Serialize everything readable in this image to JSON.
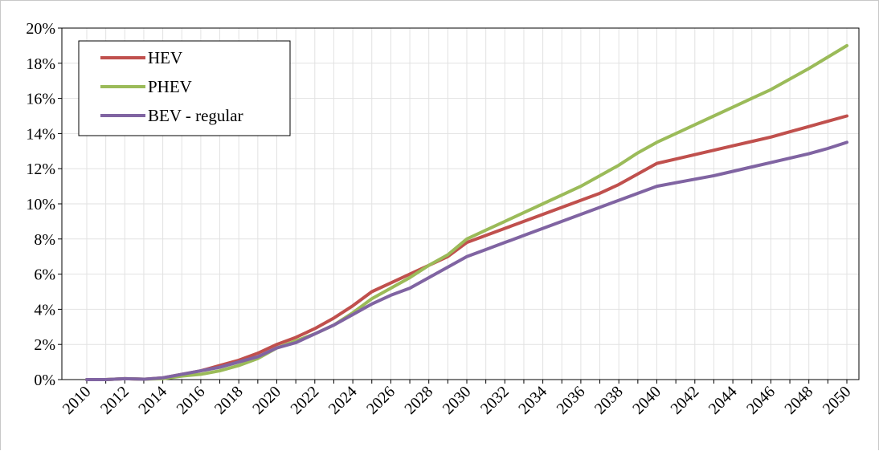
{
  "chart_data": {
    "type": "line",
    "title": "",
    "xlabel": "",
    "ylabel": "",
    "xlim": [
      2010,
      2050
    ],
    "ylim": [
      0,
      20
    ],
    "y_tick_format": "percent",
    "y_ticks": [
      "0%",
      "2%",
      "4%",
      "6%",
      "8%",
      "10%",
      "12%",
      "14%",
      "16%",
      "18%",
      "20%"
    ],
    "x_ticks": [
      "2010",
      "2012",
      "2014",
      "2016",
      "2018",
      "2020",
      "2022",
      "2024",
      "2026",
      "2028",
      "2030",
      "2032",
      "2034",
      "2036",
      "2038",
      "2040",
      "2042",
      "2044",
      "2046",
      "2048",
      "2050"
    ],
    "grid": true,
    "legend_position": "top-left",
    "x": [
      2010,
      2011,
      2012,
      2013,
      2014,
      2015,
      2016,
      2017,
      2018,
      2019,
      2020,
      2021,
      2022,
      2023,
      2024,
      2025,
      2026,
      2027,
      2028,
      2029,
      2030,
      2031,
      2032,
      2033,
      2034,
      2035,
      2036,
      2037,
      2038,
      2039,
      2040,
      2041,
      2042,
      2043,
      2044,
      2045,
      2046,
      2047,
      2048,
      2049,
      2050
    ],
    "series": [
      {
        "name": "HEV",
        "color": "#c0504d",
        "values": [
          0,
          0,
          0.05,
          0.02,
          0.1,
          0.3,
          0.5,
          0.8,
          1.1,
          1.5,
          2.0,
          2.4,
          2.9,
          3.5,
          4.2,
          5.0,
          5.5,
          6.0,
          6.5,
          7.0,
          7.8,
          8.2,
          8.6,
          9.0,
          9.4,
          9.8,
          10.2,
          10.6,
          11.1,
          11.7,
          12.3,
          12.55,
          12.8,
          13.05,
          13.3,
          13.55,
          13.8,
          14.1,
          14.4,
          14.7,
          15.0
        ]
      },
      {
        "name": "PHEV",
        "color": "#9bbb59",
        "values": [
          0,
          0,
          0.05,
          0.02,
          0.05,
          0.2,
          0.3,
          0.5,
          0.8,
          1.2,
          1.8,
          2.2,
          2.6,
          3.1,
          3.8,
          4.6,
          5.2,
          5.8,
          6.5,
          7.1,
          8.0,
          8.5,
          9.0,
          9.5,
          10.0,
          10.5,
          11.0,
          11.6,
          12.2,
          12.9,
          13.5,
          14.0,
          14.5,
          15.0,
          15.5,
          16.0,
          16.5,
          17.1,
          17.7,
          18.35,
          19.0
        ]
      },
      {
        "name": "BEV - regular",
        "color": "#8064a2",
        "values": [
          0,
          0,
          0.05,
          0.02,
          0.1,
          0.3,
          0.5,
          0.7,
          1.0,
          1.3,
          1.8,
          2.1,
          2.6,
          3.1,
          3.7,
          4.3,
          4.8,
          5.2,
          5.8,
          6.4,
          7.0,
          7.4,
          7.8,
          8.2,
          8.6,
          9.0,
          9.4,
          9.8,
          10.2,
          10.6,
          11.0,
          11.2,
          11.4,
          11.6,
          11.85,
          12.1,
          12.35,
          12.6,
          12.85,
          13.15,
          13.5
        ]
      }
    ]
  }
}
